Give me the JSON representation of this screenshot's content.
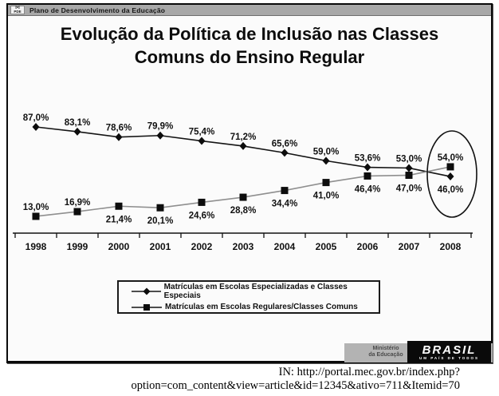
{
  "slide": {
    "topbar": {
      "logo": "PDE",
      "text": "Plano de Desenvolvimento da Educação"
    },
    "title_line1": "Evolução da Política de Inclusão nas Classes",
    "title_line2": "Comuns do Ensino Regular",
    "footer": {
      "ministry_line1": "Ministério",
      "ministry_line2": "da Educação",
      "brasil": "BRASIL",
      "tagline": "UM PAÍS DE TODOS"
    }
  },
  "caption": {
    "line1": "IN: http://portal.mec.gov.br/index.php?",
    "line2": "option=com_content&view=article&id=12345&ativo=711&Itemid=70"
  },
  "chart_data": {
    "type": "line",
    "title": "Evolução da Política de Inclusão nas Classes Comuns do Ensino Regular",
    "x": [
      "1998",
      "1999",
      "2000",
      "2001",
      "2002",
      "2003",
      "2004",
      "2005",
      "2006",
      "2007",
      "2008"
    ],
    "series": [
      {
        "name": "Matrículas em Escolas Especializadas e Classes Especiais",
        "marker": "diamond",
        "color": "#141414",
        "marker_color": "#0d0d0d",
        "values": [
          87.0,
          83.1,
          78.6,
          79.9,
          75.4,
          71.2,
          65.6,
          59.0,
          53.6,
          53.0,
          46.0
        ],
        "labels": [
          "87,0%",
          "83,1%",
          "78,6%",
          "79,9%",
          "75,4%",
          "71,2%",
          "65,6%",
          "59,0%",
          "53,6%",
          "53,0%",
          "46,0%"
        ],
        "label_positions": [
          "above",
          "above",
          "above",
          "above",
          "above",
          "above",
          "above",
          "above",
          "above",
          "above",
          "below"
        ]
      },
      {
        "name": "Matrículas em Escolas Regulares/Classes Comuns",
        "marker": "square",
        "color": "#8f8f8f",
        "marker_color": "#0d0d0d",
        "values": [
          13.0,
          16.9,
          21.4,
          20.1,
          24.6,
          28.8,
          34.4,
          41.0,
          46.4,
          47.0,
          54.0
        ],
        "labels": [
          "13,0%",
          "16,9%",
          "21,4%",
          "20,1%",
          "24,6%",
          "28,8%",
          "34,4%",
          "41,0%",
          "46,4%",
          "47,0%",
          "54,0%"
        ],
        "label_positions": [
          "above",
          "above",
          "below",
          "below",
          "below",
          "below",
          "below",
          "below",
          "below",
          "below",
          "above"
        ]
      }
    ],
    "ylim": [
      0,
      100
    ],
    "grid": false,
    "legend_position": "bottom-center",
    "annotations": [
      {
        "type": "ellipse",
        "x": "2008",
        "note": "highlights 2008 crossover values 54,0% and 46,0%"
      }
    ]
  }
}
